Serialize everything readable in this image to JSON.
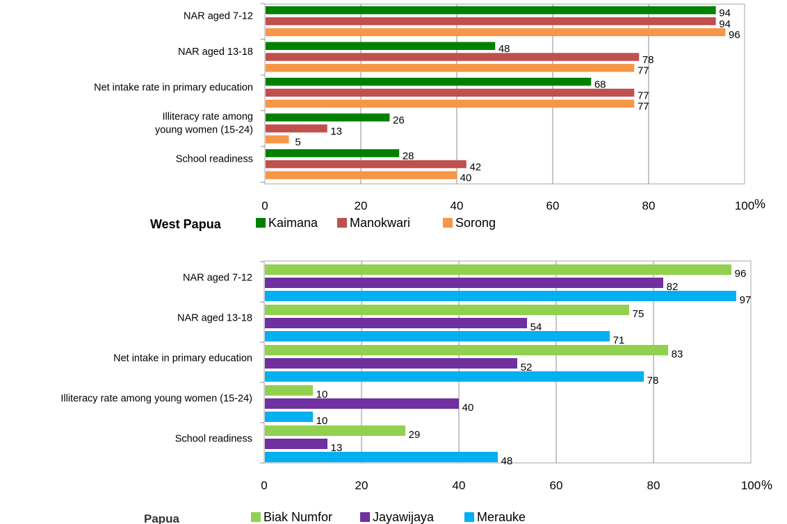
{
  "chart_data": [
    {
      "type": "bar",
      "orientation": "horizontal",
      "title": "West Papua",
      "unit_label": "%",
      "categories": [
        "NAR aged 7-12",
        "NAR aged 13-18",
        "Net intake rate in primary education",
        "Illiteracy rate among young women (15-24)",
        "School readiness"
      ],
      "category_lines": [
        [
          "NAR aged 7-12"
        ],
        [
          "NAR aged 13-18"
        ],
        [
          "Net intake rate in primary education"
        ],
        [
          "Illiteracy rate among",
          "young women (15-24)"
        ],
        [
          "School readiness"
        ]
      ],
      "series": [
        {
          "name": "Kaimana",
          "color": "#008000",
          "values": [
            94,
            48,
            68,
            26,
            28
          ]
        },
        {
          "name": "Manokwari",
          "color": "#c0504d",
          "values": [
            94,
            78,
            77,
            13,
            42
          ]
        },
        {
          "name": "Sorong",
          "color": "#f79646",
          "values": [
            96,
            77,
            77,
            5,
            40
          ]
        }
      ],
      "xlim": [
        0,
        100
      ],
      "xticks": [
        0,
        20,
        40,
        60,
        80,
        100
      ],
      "grid": true,
      "legend_position": "bottom"
    },
    {
      "type": "bar",
      "orientation": "horizontal",
      "title": "Papua",
      "unit_label": "%",
      "categories": [
        "NAR aged 7-12",
        "NAR aged 13-18",
        "Net intake in primary education",
        "Illiteracy rate among young women (15-24)",
        "School readiness"
      ],
      "category_lines": [
        [
          "NAR aged 7-12"
        ],
        [
          "NAR aged 13-18"
        ],
        [
          "Net intake in primary education"
        ],
        [
          "Illiteracy rate among young women (15-24)"
        ],
        [
          "School readiness"
        ]
      ],
      "series": [
        {
          "name": "Biak Numfor",
          "color": "#92d050",
          "values": [
            96,
            75,
            83,
            10,
            29
          ]
        },
        {
          "name": "Jayawijaya",
          "color": "#7030a0",
          "values": [
            82,
            54,
            52,
            40,
            13
          ]
        },
        {
          "name": "Merauke",
          "color": "#00b0f0",
          "values": [
            97,
            71,
            78,
            10,
            48
          ]
        }
      ],
      "xlim": [
        0,
        100
      ],
      "xticks": [
        0,
        20,
        40,
        60,
        80,
        100
      ],
      "grid": true,
      "legend_position": "bottom"
    }
  ]
}
